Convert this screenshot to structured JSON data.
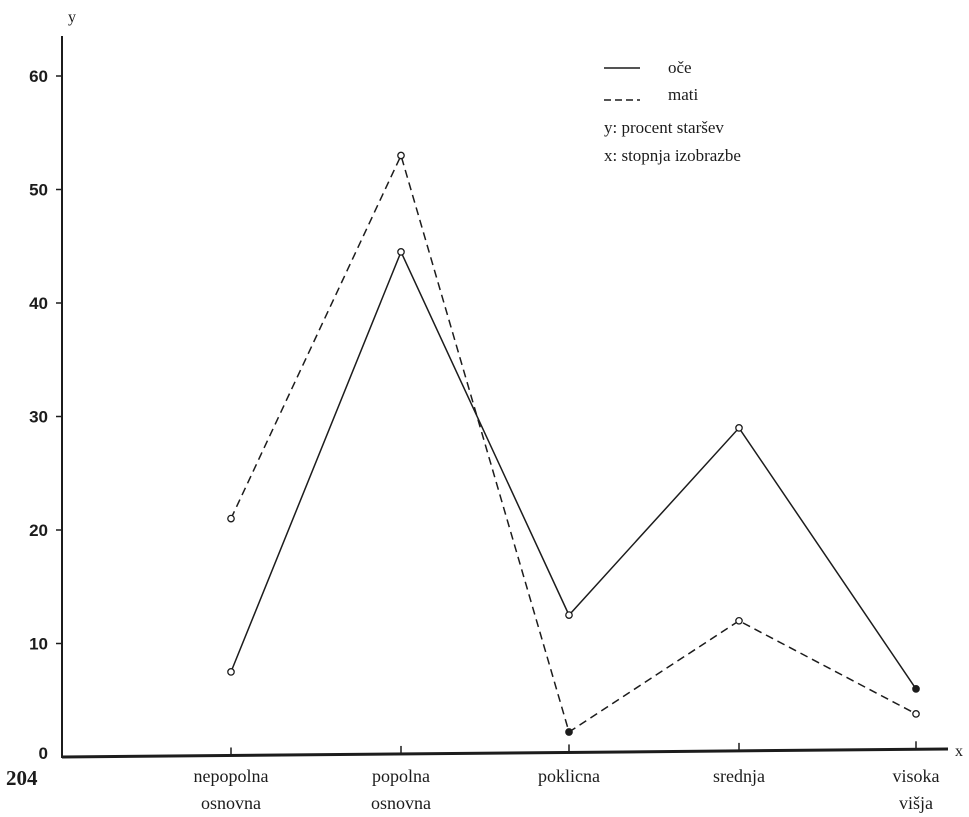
{
  "chart_data": {
    "type": "line",
    "categories": [
      [
        "nepopolna",
        "osnovna"
      ],
      [
        "popolna",
        "osnovna"
      ],
      [
        "poklicna"
      ],
      [
        "srednja"
      ],
      [
        "visoka",
        "višja"
      ]
    ],
    "series": [
      {
        "name": "oče",
        "style": "solid",
        "values": [
          7.5,
          44.5,
          12.5,
          29,
          6
        ]
      },
      {
        "name": "mati",
        "style": "dashed",
        "values": [
          21,
          53,
          2.2,
          12,
          3.8
        ]
      }
    ],
    "y_ticks": [
      "0",
      "10",
      "20",
      "30",
      "40",
      "50",
      "60"
    ],
    "ylim": [
      0,
      62
    ],
    "y_axis_letter": "y",
    "x_axis_letter": "x",
    "legend_notes": [
      "y:  procent staršev",
      "x:  stopnja izobrazbe"
    ],
    "legend_position": "top-right",
    "grid": false
  },
  "page_number": "204",
  "colors": {
    "ink": "#1c1c1c",
    "background": "#ffffff"
  }
}
